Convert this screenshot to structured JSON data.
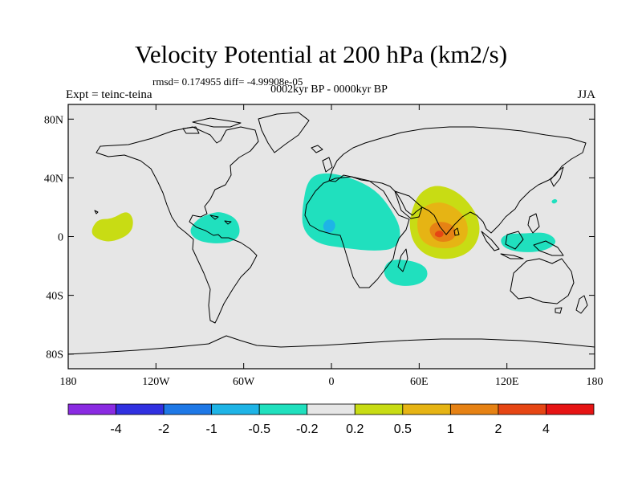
{
  "title": "Velocity Potential at 200 hPa (km2/s)",
  "stats": "rmsd= 0.174955  diff= -4.99908e-05",
  "subtitle": "0002kyr BP - 0000kyr BP",
  "left_label": "Expt = teinc-teina",
  "right_label": "JJA",
  "axes": {
    "x_ticks": [
      {
        "value": -180,
        "label": "180"
      },
      {
        "value": -120,
        "label": "120W"
      },
      {
        "value": -60,
        "label": "60W"
      },
      {
        "value": 0,
        "label": "0"
      },
      {
        "value": 60,
        "label": "60E"
      },
      {
        "value": 120,
        "label": "120E"
      },
      {
        "value": 180,
        "label": "180"
      }
    ],
    "y_ticks": [
      {
        "value": 80,
        "label": "80N"
      },
      {
        "value": 40,
        "label": "40N"
      },
      {
        "value": 0,
        "label": "0"
      },
      {
        "value": -40,
        "label": "40S"
      },
      {
        "value": -80,
        "label": "80S"
      }
    ],
    "lon_range": [
      -180,
      180
    ],
    "lat_range": [
      -90,
      90
    ]
  },
  "colorbar": {
    "colors": [
      "#8a2be2",
      "#3030e0",
      "#1e78e6",
      "#1eb4e6",
      "#20e0be",
      "#e6e6e6",
      "#c8dc14",
      "#e6b414",
      "#e68214",
      "#e64614",
      "#e61414"
    ],
    "labels": [
      "-4",
      "-2",
      "-1",
      "-0.5",
      "-0.2",
      "0.2",
      "0.5",
      "1",
      "2",
      "4"
    ]
  },
  "colors": {
    "background": "#e6e6e6",
    "cyan": "#20e0be",
    "blue": "#1eb4e6",
    "deepblue": "#1e78e6",
    "yellowgreen": "#c8dc14",
    "gold": "#e6b414",
    "orange": "#e68214",
    "orangered": "#e64614"
  },
  "chart_data": {
    "type": "heatmap",
    "title": "Velocity Potential at 200 hPa (km2/s)",
    "field": "velocity potential difference",
    "units": "km2/s",
    "features": [
      {
        "name": "central-pacific-positive",
        "level": "0.2-0.5",
        "center_lon": -147,
        "center_lat": 8
      },
      {
        "name": "central-america-negative",
        "level": "-0.2",
        "center_lon": -72,
        "center_lat": 5
      },
      {
        "name": "africa-atlantic-negative",
        "level": "-0.2",
        "center_lon": 4,
        "center_lat": 12
      },
      {
        "name": "gulf-of-guinea-core",
        "level": "-0.5",
        "center_lon": -2,
        "center_lat": 8
      },
      {
        "name": "south-indian-negative",
        "level": "-0.2",
        "center_lon": 47,
        "center_lat": -28
      },
      {
        "name": "indian-ocean-positive",
        "level": "0.5-2",
        "center_lon": 75,
        "center_lat": 5
      },
      {
        "name": "maritime-continent-negative",
        "level": "-0.2",
        "center_lon": 130,
        "center_lat": -3
      },
      {
        "name": "west-pacific-small-negative",
        "level": "-0.2",
        "center_lon": 152,
        "center_lat": 25
      }
    ]
  }
}
